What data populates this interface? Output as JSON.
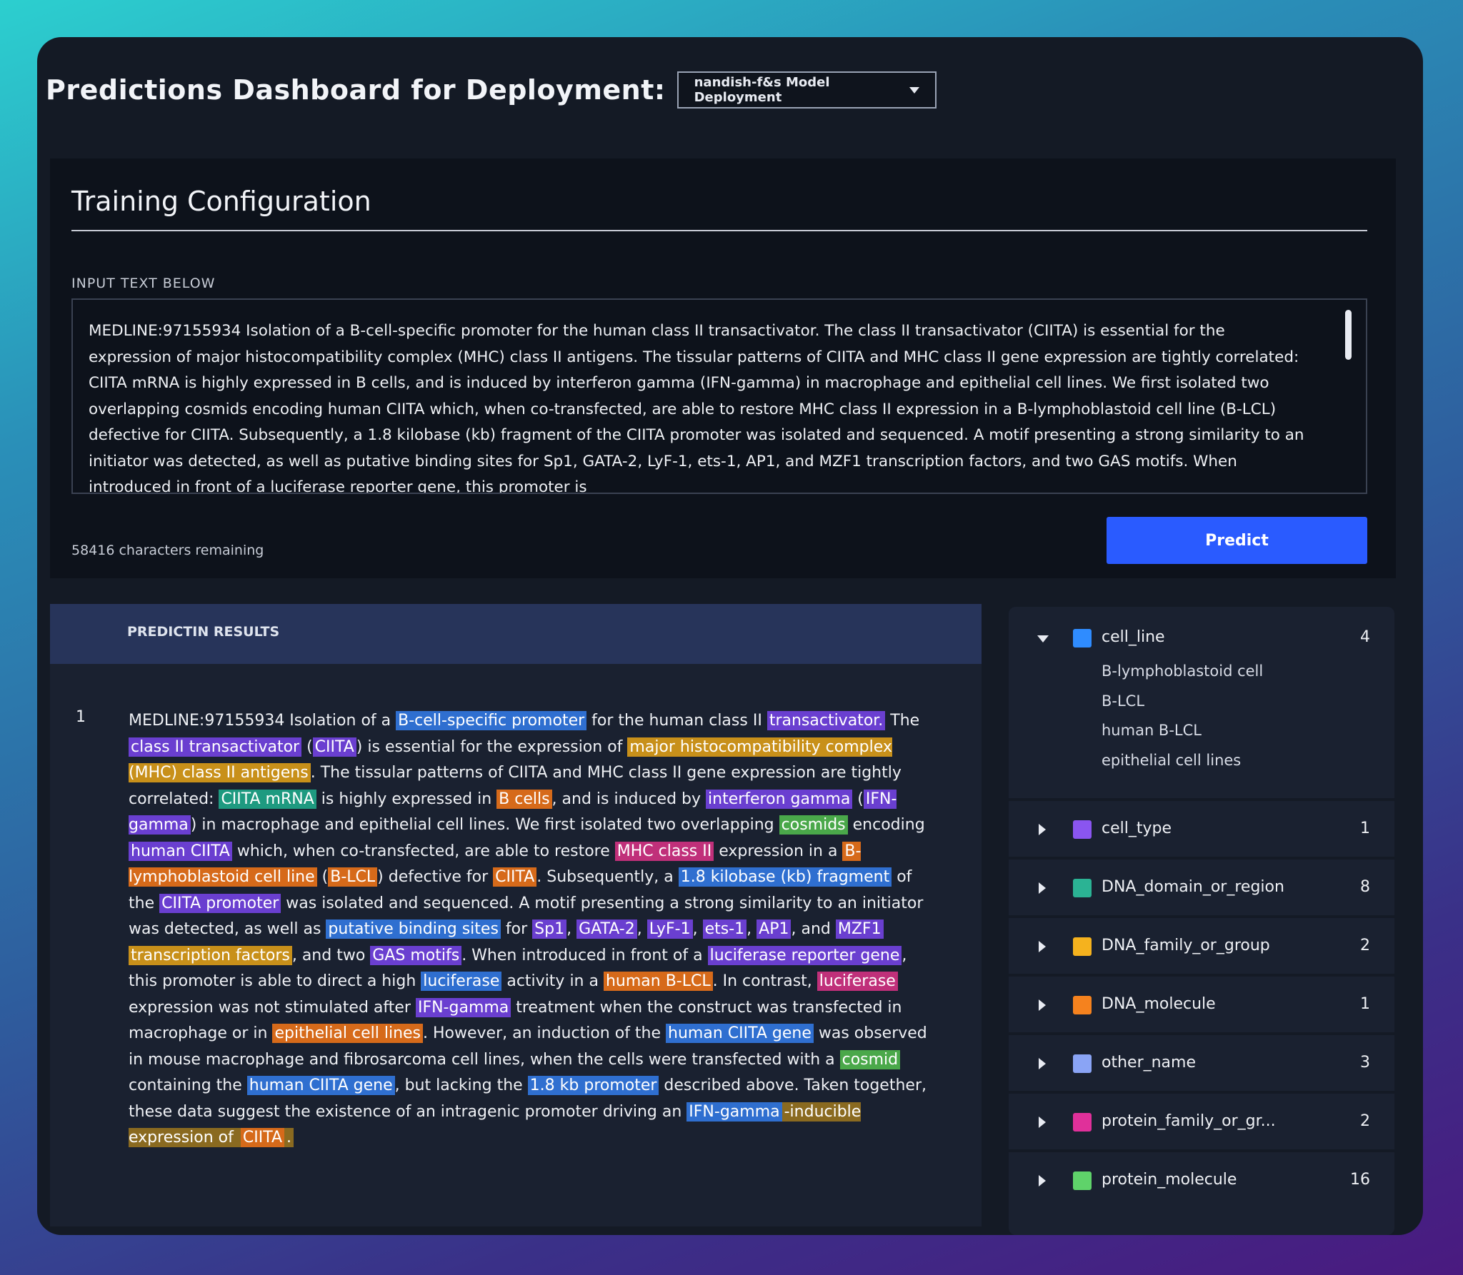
{
  "header": {
    "title": "Predictions Dashboard for Deployment:",
    "deployment_selected": "nandish-f&s Model Deployment"
  },
  "config": {
    "title": "Training Configuration",
    "input_label": "INPUT TEXT BELOW",
    "input_text": "MEDLINE:97155934   Isolation of a B-cell-specific promoter for the human class II transactivator.   The class II transactivator (CIITA) is essential for the expression of major histocompatibility complex (MHC) class II antigens. The tissular patterns of CIITA and MHC class II gene expression are tightly correlated: CIITA mRNA is highly expressed in B cells, and is induced by interferon gamma (IFN-gamma) in macrophage and epithelial cell lines. We first isolated two overlapping cosmids encoding human CIITA which, when co-transfected, are able to restore MHC class II expression in a B-lymphoblastoid cell line (B-LCL) defective for CIITA. Subsequently, a 1.8 kilobase (kb) fragment of the CIITA promoter was isolated and sequenced. A motif presenting a strong similarity to an initiator was detected, as well as putative binding sites for Sp1, GATA-2, LyF-1, ets-1, AP1, and MZF1 transcription factors, and two GAS motifs. When introduced in front of a luciferase reporter gene, this promoter is",
    "chars_remaining": "58416 characters remaining",
    "predict_label": "Predict"
  },
  "results": {
    "header_label": "PREDICTIN RESULTS",
    "row_number": "1",
    "segments": [
      {
        "t": "MEDLINE:97155934   Isolation of a "
      },
      {
        "t": "B-cell-specific promoter",
        "c": "#2f6fd0"
      },
      {
        "t": " for the human class II "
      },
      {
        "t": "transactivator.",
        "c": "#6a3fd0"
      },
      {
        "t": "   The "
      },
      {
        "t": "class II transactivator",
        "c": "#6a3fd0"
      },
      {
        "t": " ("
      },
      {
        "t": "CIITA",
        "c": "#6a3fd0"
      },
      {
        "t": ") is essential for the expression of "
      },
      {
        "t": "major histocompatibility complex (MHC) class II antigens",
        "c": "#c8901a"
      },
      {
        "t": ". The tissular patterns of CIITA and MHC class II gene expression are tightly correlated: "
      },
      {
        "t": "CIITA mRNA",
        "c": "#1e9a80"
      },
      {
        "t": " is highly expressed in "
      },
      {
        "t": "B cells",
        "c": "#d66a1a"
      },
      {
        "t": ", and is induced by "
      },
      {
        "t": "interferon gamma",
        "c": "#6a3fd0"
      },
      {
        "t": " ("
      },
      {
        "t": "IFN-gamma",
        "c": "#6a3fd0"
      },
      {
        "t": ") in macrophage and epithelial cell lines. We first isolated two overlapping "
      },
      {
        "t": "cosmids",
        "c": "#4aa84a"
      },
      {
        "t": " encoding "
      },
      {
        "t": "human CIITA",
        "c": "#6a3fd0"
      },
      {
        "t": " which, when co-transfected, are able to restore "
      },
      {
        "t": "MHC class II",
        "c": "#c0307a"
      },
      {
        "t": " expression in a "
      },
      {
        "t": "B-lymphoblastoid cell line",
        "c": "#d66a1a"
      },
      {
        "t": " ("
      },
      {
        "t": "B-LCL",
        "c": "#d66a1a"
      },
      {
        "t": ") defective for "
      },
      {
        "t": "CIITA",
        "c": "#d66a1a"
      },
      {
        "t": ". Subsequently, a "
      },
      {
        "t": "1.8 kilobase (kb) fragment",
        "c": "#2f6fd0"
      },
      {
        "t": " of the "
      },
      {
        "t": "CIITA promoter",
        "c": "#6a3fd0"
      },
      {
        "t": " was isolated and sequenced. A motif presenting a strong similarity to an initiator was detected, as well as "
      },
      {
        "t": "putative binding sites",
        "c": "#2f6fd0"
      },
      {
        "t": " for "
      },
      {
        "t": "Sp1",
        "c": "#6a3fd0"
      },
      {
        "t": ", "
      },
      {
        "t": "GATA-2",
        "c": "#6a3fd0"
      },
      {
        "t": ", "
      },
      {
        "t": "LyF-1",
        "c": "#6a3fd0"
      },
      {
        "t": ", "
      },
      {
        "t": "ets-1",
        "c": "#6a3fd0"
      },
      {
        "t": ", "
      },
      {
        "t": "AP1",
        "c": "#6a3fd0"
      },
      {
        "t": ", and "
      },
      {
        "t": "MZF1",
        "c": "#6a3fd0"
      },
      {
        "t": " "
      },
      {
        "t": "transcription factors",
        "c": "#c8901a"
      },
      {
        "t": ", and two "
      },
      {
        "t": "GAS motifs",
        "c": "#6a3fd0"
      },
      {
        "t": ". When introduced in front of a "
      },
      {
        "t": "luciferase reporter gene",
        "c": "#6a3fd0"
      },
      {
        "t": ", this promoter is able to direct a high "
      },
      {
        "t": "luciferase",
        "c": "#2f6fd0"
      },
      {
        "t": " activity in a "
      },
      {
        "t": "human B-LCL",
        "c": "#d66a1a"
      },
      {
        "t": ". In contrast, "
      },
      {
        "t": "luciferase",
        "c": "#c0307a"
      },
      {
        "t": " expression was not stimulated after "
      },
      {
        "t": "IFN-gamma",
        "c": "#6a3fd0"
      },
      {
        "t": " treatment when the construct was transfected in macrophage or in "
      },
      {
        "t": "epithelial cell lines",
        "c": "#d66a1a"
      },
      {
        "t": ". However, an induction of the "
      },
      {
        "t": "human CIITA gene",
        "c": "#2f6fd0"
      },
      {
        "t": " was observed in mouse macrophage and fibrosarcoma cell lines, when the cells were transfected with a "
      },
      {
        "t": "cosmid",
        "c": "#4aa84a"
      },
      {
        "t": " containing the "
      },
      {
        "t": "human CIITA gene",
        "c": "#2f6fd0"
      },
      {
        "t": ", but lacking the "
      },
      {
        "t": "1.8 kb promoter",
        "c": "#2f6fd0"
      },
      {
        "t": " described above. Taken together, these data suggest the existence of an intragenic promoter driving an "
      },
      {
        "t": "IFN-gamma",
        "c": "#2f6fd0"
      },
      {
        "t": "-inducible expression of ",
        "c": "#8a6a20"
      },
      {
        "t": "CIITA",
        "c": "#d66a1a"
      },
      {
        "t": ".",
        "c": "#8a6a20"
      }
    ]
  },
  "legend": {
    "items": [
      {
        "label": "cell_line",
        "count": "4",
        "color": "#2f8cff",
        "expanded": true,
        "children": [
          "B-lymphoblastoid cell",
          "B-LCL",
          "human B-LCL",
          "epithelial cell lines"
        ]
      },
      {
        "label": "cell_type",
        "count": "1",
        "color": "#8a55f0",
        "expanded": false
      },
      {
        "label": "DNA_domain_or_region",
        "count": "8",
        "color": "#2bb394",
        "expanded": false
      },
      {
        "label": "DNA_family_or_group",
        "count": "2",
        "color": "#f5b21e",
        "expanded": false
      },
      {
        "label": "DNA_molecule",
        "count": "1",
        "color": "#f5821e",
        "expanded": false
      },
      {
        "label": "other_name",
        "count": "3",
        "color": "#8aa4f5",
        "expanded": false
      },
      {
        "label": "protein_family_or_gr...",
        "count": "2",
        "color": "#e0309a",
        "expanded": false
      },
      {
        "label": "protein_molecule",
        "count": "16",
        "color": "#5fd36a",
        "expanded": false
      }
    ]
  }
}
